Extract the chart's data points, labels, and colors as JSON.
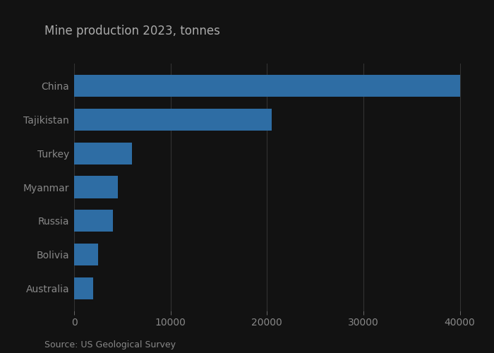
{
  "title": "Mine production 2023, tonnes",
  "source": "Source: US Geological Survey",
  "categories": [
    "Australia",
    "Bolivia",
    "Russia",
    "Myanmar",
    "Turkey",
    "Tajikistan",
    "China"
  ],
  "values": [
    2000,
    2500,
    4000,
    4500,
    6000,
    20500,
    40000
  ],
  "bar_color": "#2e6da4",
  "xlim": [
    0,
    42000
  ],
  "xticks": [
    0,
    10000,
    20000,
    30000,
    40000
  ],
  "background_color": "#121212",
  "plot_bg_color": "#121212",
  "title_color": "#aaaaaa",
  "tick_color": "#888888",
  "grid_color": "#333333",
  "source_color": "#888888",
  "title_fontsize": 12,
  "label_fontsize": 10,
  "source_fontsize": 9
}
